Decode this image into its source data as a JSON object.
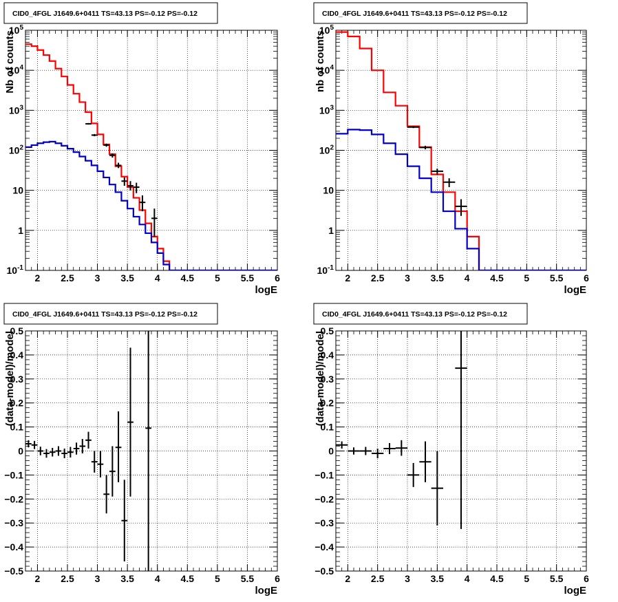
{
  "colors": {
    "data": "#000000",
    "model": "#ff0000",
    "background": "#0000cc",
    "grid": "#000000"
  },
  "chart_data": [
    {
      "type": "line",
      "title": "CID0_4FGL J1649.6+0411 TS=43.13 PS=-0.12 PS=-0.12",
      "xlabel": "logE",
      "ylabel": "Nb of counts",
      "xlim": [
        1.8,
        6.0
      ],
      "ylim": [
        0.1,
        100000
      ],
      "yscale": "log",
      "grid": true,
      "xticks": [
        "2",
        "2.5",
        "3",
        "3.5",
        "4",
        "4.5",
        "5",
        "5.5",
        "6"
      ],
      "yticks": [
        "10^-1",
        "1",
        "10",
        "10^2",
        "10^3",
        "10^4",
        "10^5"
      ],
      "series": [
        {
          "kind": "step",
          "color": "#ff0000",
          "edges": [
            1.8,
            1.9,
            2.0,
            2.1,
            2.2,
            2.3,
            2.4,
            2.5,
            2.6,
            2.7,
            2.8,
            2.9,
            3.0,
            3.1,
            3.2,
            3.3,
            3.4,
            3.5,
            3.6,
            3.7,
            3.8,
            3.9,
            4.0,
            4.1,
            4.2,
            4.3,
            4.4,
            4.5,
            4.6,
            4.7,
            4.8,
            4.9,
            5.0,
            5.1,
            5.2,
            5.3,
            5.4,
            5.5,
            5.6,
            5.7,
            5.8,
            5.9,
            6.0
          ],
          "values": [
            45000,
            40000,
            32000,
            24000,
            17000,
            11000,
            7000,
            4300,
            2600,
            1600,
            900,
            470,
            250,
            140,
            80,
            40,
            22,
            12,
            6.5,
            3.2,
            1.5,
            0.7,
            0.35,
            0.17,
            0.1,
            0.1,
            0.1,
            0.1,
            0.1,
            0.1,
            0.1,
            0.1,
            0.1,
            0.1,
            0.1,
            0.1,
            0.1,
            0.1,
            0.1,
            0.1,
            0.1,
            0.1
          ]
        },
        {
          "kind": "step",
          "color": "#0000cc",
          "edges": [
            1.8,
            1.9,
            2.0,
            2.1,
            2.2,
            2.3,
            2.4,
            2.5,
            2.6,
            2.7,
            2.8,
            2.9,
            3.0,
            3.1,
            3.2,
            3.3,
            3.4,
            3.5,
            3.6,
            3.7,
            3.8,
            3.9,
            4.0,
            4.1,
            4.2,
            4.3,
            4.4,
            4.5,
            4.6,
            4.7,
            4.8,
            4.9,
            5.0,
            5.1,
            5.2,
            5.3,
            5.4,
            5.5,
            5.6,
            5.7,
            5.8,
            5.9,
            6.0
          ],
          "values": [
            120,
            135,
            150,
            160,
            165,
            150,
            130,
            110,
            90,
            70,
            55,
            42,
            30,
            21,
            14,
            9,
            5.5,
            3.5,
            2.2,
            1.4,
            0.85,
            0.5,
            0.27,
            0.14,
            0.1,
            0.1,
            0.1,
            0.1,
            0.1,
            0.1,
            0.1,
            0.1,
            0.1,
            0.1,
            0.1,
            0.1,
            0.1,
            0.1,
            0.1,
            0.1,
            0.1,
            0.1
          ]
        },
        {
          "kind": "points",
          "color": "#000000",
          "points": [
            {
              "x": 2.85,
              "y": 460,
              "xerr": 0.05,
              "ylo": 440,
              "yhi": 480
            },
            {
              "x": 2.95,
              "y": 240,
              "xerr": 0.05,
              "ylo": 225,
              "yhi": 255
            },
            {
              "x": 3.15,
              "y": 135,
              "xerr": 0.05,
              "ylo": 123,
              "yhi": 147
            },
            {
              "x": 3.25,
              "y": 75,
              "xerr": 0.05,
              "ylo": 66,
              "yhi": 84
            },
            {
              "x": 3.35,
              "y": 42,
              "xerr": 0.05,
              "ylo": 36,
              "yhi": 49
            },
            {
              "x": 3.45,
              "y": 17,
              "xerr": 0.05,
              "ylo": 13,
              "yhi": 21
            },
            {
              "x": 3.55,
              "y": 13,
              "xerr": 0.05,
              "ylo": 10,
              "yhi": 17
            },
            {
              "x": 3.65,
              "y": 12,
              "xerr": 0.05,
              "ylo": 8.5,
              "yhi": 15.5
            },
            {
              "x": 3.75,
              "y": 5,
              "xerr": 0.05,
              "ylo": 3,
              "yhi": 7.5
            },
            {
              "x": 3.95,
              "y": 2,
              "xerr": 0.05,
              "ylo": 0.7,
              "yhi": 3.5
            }
          ]
        }
      ]
    },
    {
      "type": "line",
      "title": "CID0_4FGL J1649.6+0411 TS=43.13 PS=-0.12 PS=-0.12",
      "xlabel": "logE",
      "ylabel": "nb of counts",
      "xlim": [
        1.8,
        6.0
      ],
      "ylim": [
        0.1,
        100000
      ],
      "yscale": "log",
      "grid": true,
      "xticks": [
        "2",
        "2.5",
        "3",
        "3.5",
        "4",
        "4.5",
        "5",
        "5.5",
        "6"
      ],
      "yticks": [
        "10^-1",
        "1",
        "10",
        "10^2",
        "10^3",
        "10^4",
        "10^5"
      ],
      "series": [
        {
          "kind": "step",
          "color": "#ff0000",
          "edges": [
            1.8,
            2.0,
            2.2,
            2.4,
            2.6,
            2.8,
            3.0,
            3.2,
            3.4,
            3.6,
            3.8,
            4.0,
            4.2,
            4.4,
            4.6,
            4.8,
            5.0,
            5.2,
            5.4,
            5.6,
            5.8,
            6.0
          ],
          "values": [
            90000,
            70000,
            35000,
            10000,
            2800,
            1300,
            400,
            120,
            25,
            9,
            3,
            0.7,
            0.1,
            0.1,
            0.1,
            0.1,
            0.1,
            0.1,
            0.1,
            0.1,
            0.1
          ]
        },
        {
          "kind": "step",
          "color": "#0000cc",
          "edges": [
            1.8,
            2.0,
            2.2,
            2.4,
            2.6,
            2.8,
            3.0,
            3.2,
            3.4,
            3.6,
            3.8,
            4.0,
            4.2,
            4.4,
            4.6,
            4.8,
            5.0,
            5.2,
            5.4,
            5.6,
            5.8,
            6.0
          ],
          "values": [
            260,
            330,
            320,
            250,
            150,
            80,
            40,
            20,
            9,
            3,
            1.1,
            0.35,
            0.1,
            0.1,
            0.1,
            0.1,
            0.1,
            0.1,
            0.1,
            0.1,
            0.1
          ]
        },
        {
          "kind": "points",
          "color": "#000000",
          "points": [
            {
              "x": 3.1,
              "y": 380,
              "xerr": 0.1,
              "ylo": 360,
              "yhi": 400
            },
            {
              "x": 3.3,
              "y": 118,
              "xerr": 0.1,
              "ylo": 106,
              "yhi": 130
            },
            {
              "x": 3.5,
              "y": 30,
              "xerr": 0.1,
              "ylo": 25,
              "yhi": 35
            },
            {
              "x": 3.7,
              "y": 16,
              "xerr": 0.1,
              "ylo": 12,
              "yhi": 20
            },
            {
              "x": 3.9,
              "y": 4,
              "xerr": 0.1,
              "ylo": 2.3,
              "yhi": 6
            }
          ]
        }
      ]
    },
    {
      "type": "scatter",
      "title": "CID0_4FGL J1649.6+0411 TS=43.13 PS=-0.12 PS=-0.12",
      "xlabel": "logE",
      "ylabel": "(data-model)/model",
      "xlim": [
        1.8,
        6.0
      ],
      "ylim": [
        -0.5,
        0.5
      ],
      "yscale": "linear",
      "grid": true,
      "xticks": [
        "2",
        "2.5",
        "3",
        "3.5",
        "4",
        "4.5",
        "5",
        "5.5",
        "6"
      ],
      "yticks": [
        "-0.5",
        "-0.4",
        "-0.3",
        "-0.2",
        "-0.1",
        "0",
        "0.1",
        "0.2",
        "0.3",
        "0.4",
        "0.5"
      ],
      "series": [
        {
          "kind": "points",
          "color": "#000000",
          "points": [
            {
              "x": 1.85,
              "y": 0.03,
              "xerr": 0.05,
              "ylo": 0.015,
              "yhi": 0.045
            },
            {
              "x": 1.95,
              "y": 0.025,
              "xerr": 0.05,
              "ylo": 0.008,
              "yhi": 0.042
            },
            {
              "x": 2.05,
              "y": 0.0,
              "xerr": 0.05,
              "ylo": -0.018,
              "yhi": 0.018
            },
            {
              "x": 2.15,
              "y": -0.01,
              "xerr": 0.05,
              "ylo": -0.028,
              "yhi": 0.008
            },
            {
              "x": 2.25,
              "y": -0.005,
              "xerr": 0.05,
              "ylo": -0.023,
              "yhi": 0.013
            },
            {
              "x": 2.35,
              "y": 0.0,
              "xerr": 0.05,
              "ylo": -0.02,
              "yhi": 0.02
            },
            {
              "x": 2.45,
              "y": -0.01,
              "xerr": 0.05,
              "ylo": -0.03,
              "yhi": 0.01
            },
            {
              "x": 2.55,
              "y": -0.005,
              "xerr": 0.05,
              "ylo": -0.027,
              "yhi": 0.017
            },
            {
              "x": 2.65,
              "y": 0.01,
              "xerr": 0.05,
              "ylo": -0.015,
              "yhi": 0.035
            },
            {
              "x": 2.75,
              "y": 0.02,
              "xerr": 0.05,
              "ylo": -0.01,
              "yhi": 0.05
            },
            {
              "x": 2.85,
              "y": 0.045,
              "xerr": 0.05,
              "ylo": 0.01,
              "yhi": 0.08
            },
            {
              "x": 2.95,
              "y": -0.045,
              "xerr": 0.05,
              "ylo": -0.09,
              "yhi": 0.0
            },
            {
              "x": 3.05,
              "y": -0.055,
              "xerr": 0.05,
              "ylo": -0.11,
              "yhi": 0.0
            },
            {
              "x": 3.15,
              "y": -0.18,
              "xerr": 0.05,
              "ylo": -0.26,
              "yhi": -0.1
            },
            {
              "x": 3.25,
              "y": -0.085,
              "xerr": 0.05,
              "ylo": -0.19,
              "yhi": 0.02
            },
            {
              "x": 3.35,
              "y": 0.015,
              "xerr": 0.05,
              "ylo": -0.13,
              "yhi": 0.165
            },
            {
              "x": 3.45,
              "y": -0.29,
              "xerr": 0.05,
              "ylo": -0.46,
              "yhi": -0.12
            },
            {
              "x": 3.55,
              "y": 0.12,
              "xerr": 0.05,
              "ylo": -0.19,
              "yhi": 0.43
            },
            {
              "x": 3.85,
              "y": 0.095,
              "xerr": 0.05,
              "ylo": -0.5,
              "yhi": 0.5
            }
          ]
        }
      ]
    },
    {
      "type": "scatter",
      "title": "CID0_4FGL J1649.6+0411 TS=43.13 PS=-0.12 PS=-0.12",
      "xlabel": "logE",
      "ylabel": "(data-model)/model",
      "xlim": [
        1.8,
        6.0
      ],
      "ylim": [
        -0.5,
        0.5
      ],
      "yscale": "linear",
      "grid": true,
      "xticks": [
        "2",
        "2.5",
        "3",
        "3.5",
        "4",
        "4.5",
        "5",
        "5.5",
        "6"
      ],
      "yticks": [
        "-0.5",
        "-0.4",
        "-0.3",
        "-0.2",
        "-0.1",
        "0",
        "0.1",
        "0.2",
        "0.3",
        "0.4",
        "0.5"
      ],
      "series": [
        {
          "kind": "points",
          "color": "#000000",
          "points": [
            {
              "x": 1.9,
              "y": 0.025,
              "xerr": 0.1,
              "ylo": 0.01,
              "yhi": 0.04
            },
            {
              "x": 2.1,
              "y": 0.0,
              "xerr": 0.1,
              "ylo": -0.015,
              "yhi": 0.015
            },
            {
              "x": 2.3,
              "y": 0.0,
              "xerr": 0.1,
              "ylo": -0.017,
              "yhi": 0.017
            },
            {
              "x": 2.5,
              "y": -0.01,
              "xerr": 0.1,
              "ylo": -0.03,
              "yhi": 0.01
            },
            {
              "x": 2.7,
              "y": 0.01,
              "xerr": 0.1,
              "ylo": -0.013,
              "yhi": 0.033
            },
            {
              "x": 2.9,
              "y": 0.012,
              "xerr": 0.1,
              "ylo": -0.02,
              "yhi": 0.045
            },
            {
              "x": 3.1,
              "y": -0.1,
              "xerr": 0.1,
              "ylo": -0.15,
              "yhi": -0.05
            },
            {
              "x": 3.3,
              "y": -0.045,
              "xerr": 0.1,
              "ylo": -0.13,
              "yhi": 0.04
            },
            {
              "x": 3.5,
              "y": -0.155,
              "xerr": 0.1,
              "ylo": -0.31,
              "yhi": 0.0
            },
            {
              "x": 3.9,
              "y": 0.345,
              "xerr": 0.1,
              "ylo": -0.325,
              "yhi": 0.5
            }
          ]
        }
      ]
    }
  ]
}
